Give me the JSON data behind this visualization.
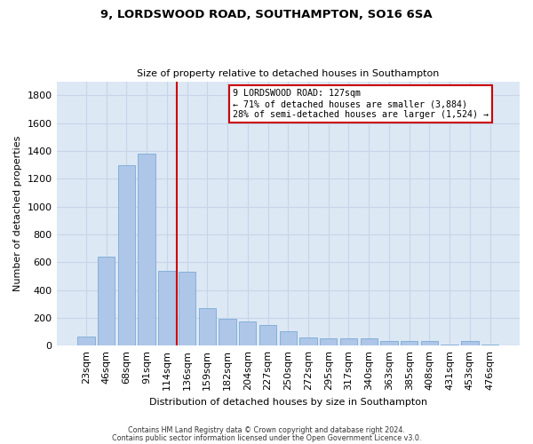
{
  "title1": "9, LORDSWOOD ROAD, SOUTHAMPTON, SO16 6SA",
  "title2": "Size of property relative to detached houses in Southampton",
  "xlabel": "Distribution of detached houses by size in Southampton",
  "ylabel": "Number of detached properties",
  "categories": [
    "23sqm",
    "46sqm",
    "68sqm",
    "91sqm",
    "114sqm",
    "136sqm",
    "159sqm",
    "182sqm",
    "204sqm",
    "227sqm",
    "250sqm",
    "272sqm",
    "295sqm",
    "317sqm",
    "340sqm",
    "363sqm",
    "385sqm",
    "408sqm",
    "431sqm",
    "453sqm",
    "476sqm"
  ],
  "values": [
    62,
    640,
    1300,
    1380,
    540,
    530,
    270,
    195,
    175,
    145,
    105,
    58,
    55,
    55,
    55,
    30,
    30,
    30,
    8,
    30,
    8
  ],
  "bar_color": "#aec6e8",
  "bar_edge_color": "#7aacd4",
  "grid_color": "#c8d4e8",
  "background_color": "#dde8f5",
  "fig_background": "#ffffff",
  "vline_x_idx": 4.5,
  "vline_color": "#cc0000",
  "annotation_text": "9 LORDSWOOD ROAD: 127sqm\n← 71% of detached houses are smaller (3,884)\n28% of semi-detached houses are larger (1,524) →",
  "annotation_box_color": "#ffffff",
  "annotation_box_edge": "#cc0000",
  "ylim": [
    0,
    1900
  ],
  "yticks": [
    0,
    200,
    400,
    600,
    800,
    1000,
    1200,
    1400,
    1600,
    1800
  ],
  "footer1": "Contains HM Land Registry data © Crown copyright and database right 2024.",
  "footer2": "Contains public sector information licensed under the Open Government Licence v3.0."
}
